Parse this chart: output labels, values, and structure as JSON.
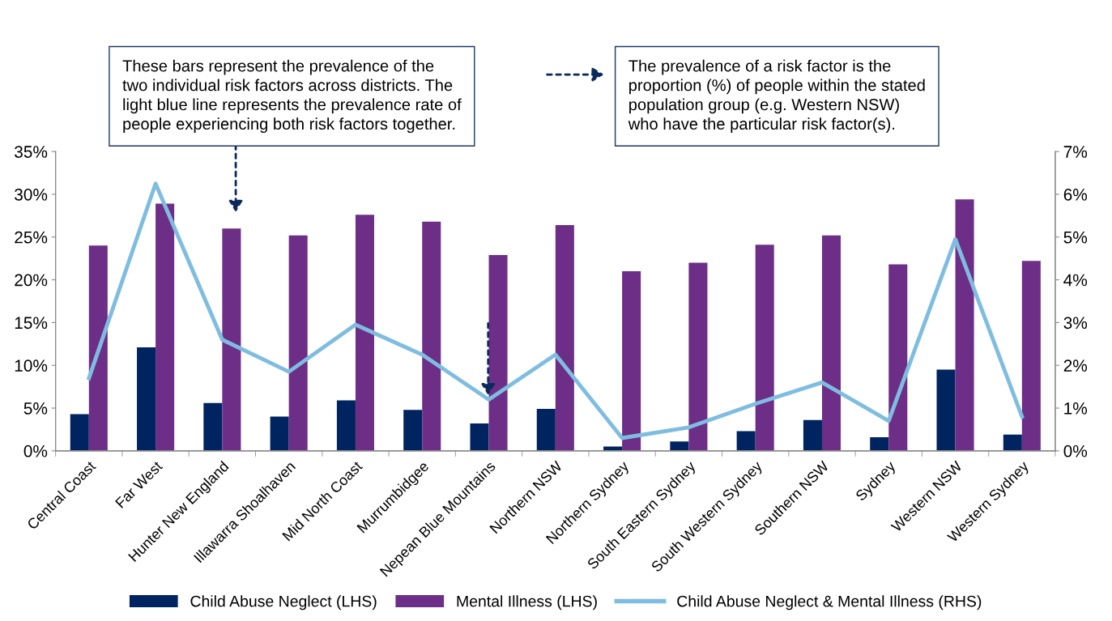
{
  "chart_data": {
    "type": "bar",
    "categories": [
      "Central Coast",
      "Far West",
      "Hunter New England",
      "Illawarra Shoalhaven",
      "Mid North Coast",
      "Murrumbidgee",
      "Nepean Blue Mountains",
      "Northern NSW",
      "Northern Sydney",
      "South Eastern Sydney",
      "South Western Sydney",
      "Southern NSW",
      "Sydney",
      "Western NSW",
      "Western Sydney"
    ],
    "series": [
      {
        "name": "Child Abuse Neglect (LHS)",
        "color": "#00245f",
        "values": [
          4.3,
          12.1,
          5.6,
          4.0,
          5.9,
          4.8,
          3.2,
          4.9,
          0.5,
          1.1,
          2.3,
          3.6,
          1.6,
          9.5,
          1.9
        ]
      },
      {
        "name": "Mental Illness (LHS)",
        "color": "#6d2e87",
        "values": [
          24.0,
          28.9,
          26.0,
          25.2,
          27.6,
          26.8,
          22.9,
          26.4,
          21.0,
          22.0,
          24.1,
          25.2,
          21.8,
          29.4,
          22.2
        ]
      },
      {
        "name": "Child Abuse Neglect & Mental Illness (RHS)",
        "color": "#7fbde0",
        "type": "line",
        "axis": "y2",
        "values": [
          1.7,
          6.25,
          2.6,
          1.85,
          2.95,
          2.25,
          1.2,
          2.25,
          0.3,
          0.55,
          1.1,
          1.6,
          0.7,
          4.95,
          0.8
        ]
      }
    ],
    "ylim": [
      0,
      35
    ],
    "yticks": [
      {
        "value": 0,
        "label": "0%"
      },
      {
        "value": 5,
        "label": "5%"
      },
      {
        "value": 10,
        "label": "10%"
      },
      {
        "value": 15,
        "label": "15%"
      },
      {
        "value": 20,
        "label": "20%"
      },
      {
        "value": 25,
        "label": "25%"
      },
      {
        "value": 30,
        "label": "30%"
      },
      {
        "value": 35,
        "label": "35%"
      }
    ],
    "y2lim": [
      0,
      7
    ],
    "y2ticks": [
      {
        "value": 0,
        "label": "0%"
      },
      {
        "value": 1,
        "label": "1%"
      },
      {
        "value": 2,
        "label": "2%"
      },
      {
        "value": 3,
        "label": "3%"
      },
      {
        "value": 4,
        "label": "4%"
      },
      {
        "value": 5,
        "label": "5%"
      },
      {
        "value": 6,
        "label": "6%"
      },
      {
        "value": 7,
        "label": "7%"
      }
    ],
    "annotations": [
      "These bars represent the prevalence of the\ntwo individual risk factors across districts. The\nlight blue line represents the prevalence rate of\npeople experiencing both risk factors together.",
      "The prevalence of a risk factor is the\nproportion (%) of people within the stated\npopulation group (e.g. Western NSW)\nwho have the particular risk factor(s)."
    ],
    "legend": "bottom",
    "grid": false,
    "marker": "none",
    "line_style": "solid"
  }
}
